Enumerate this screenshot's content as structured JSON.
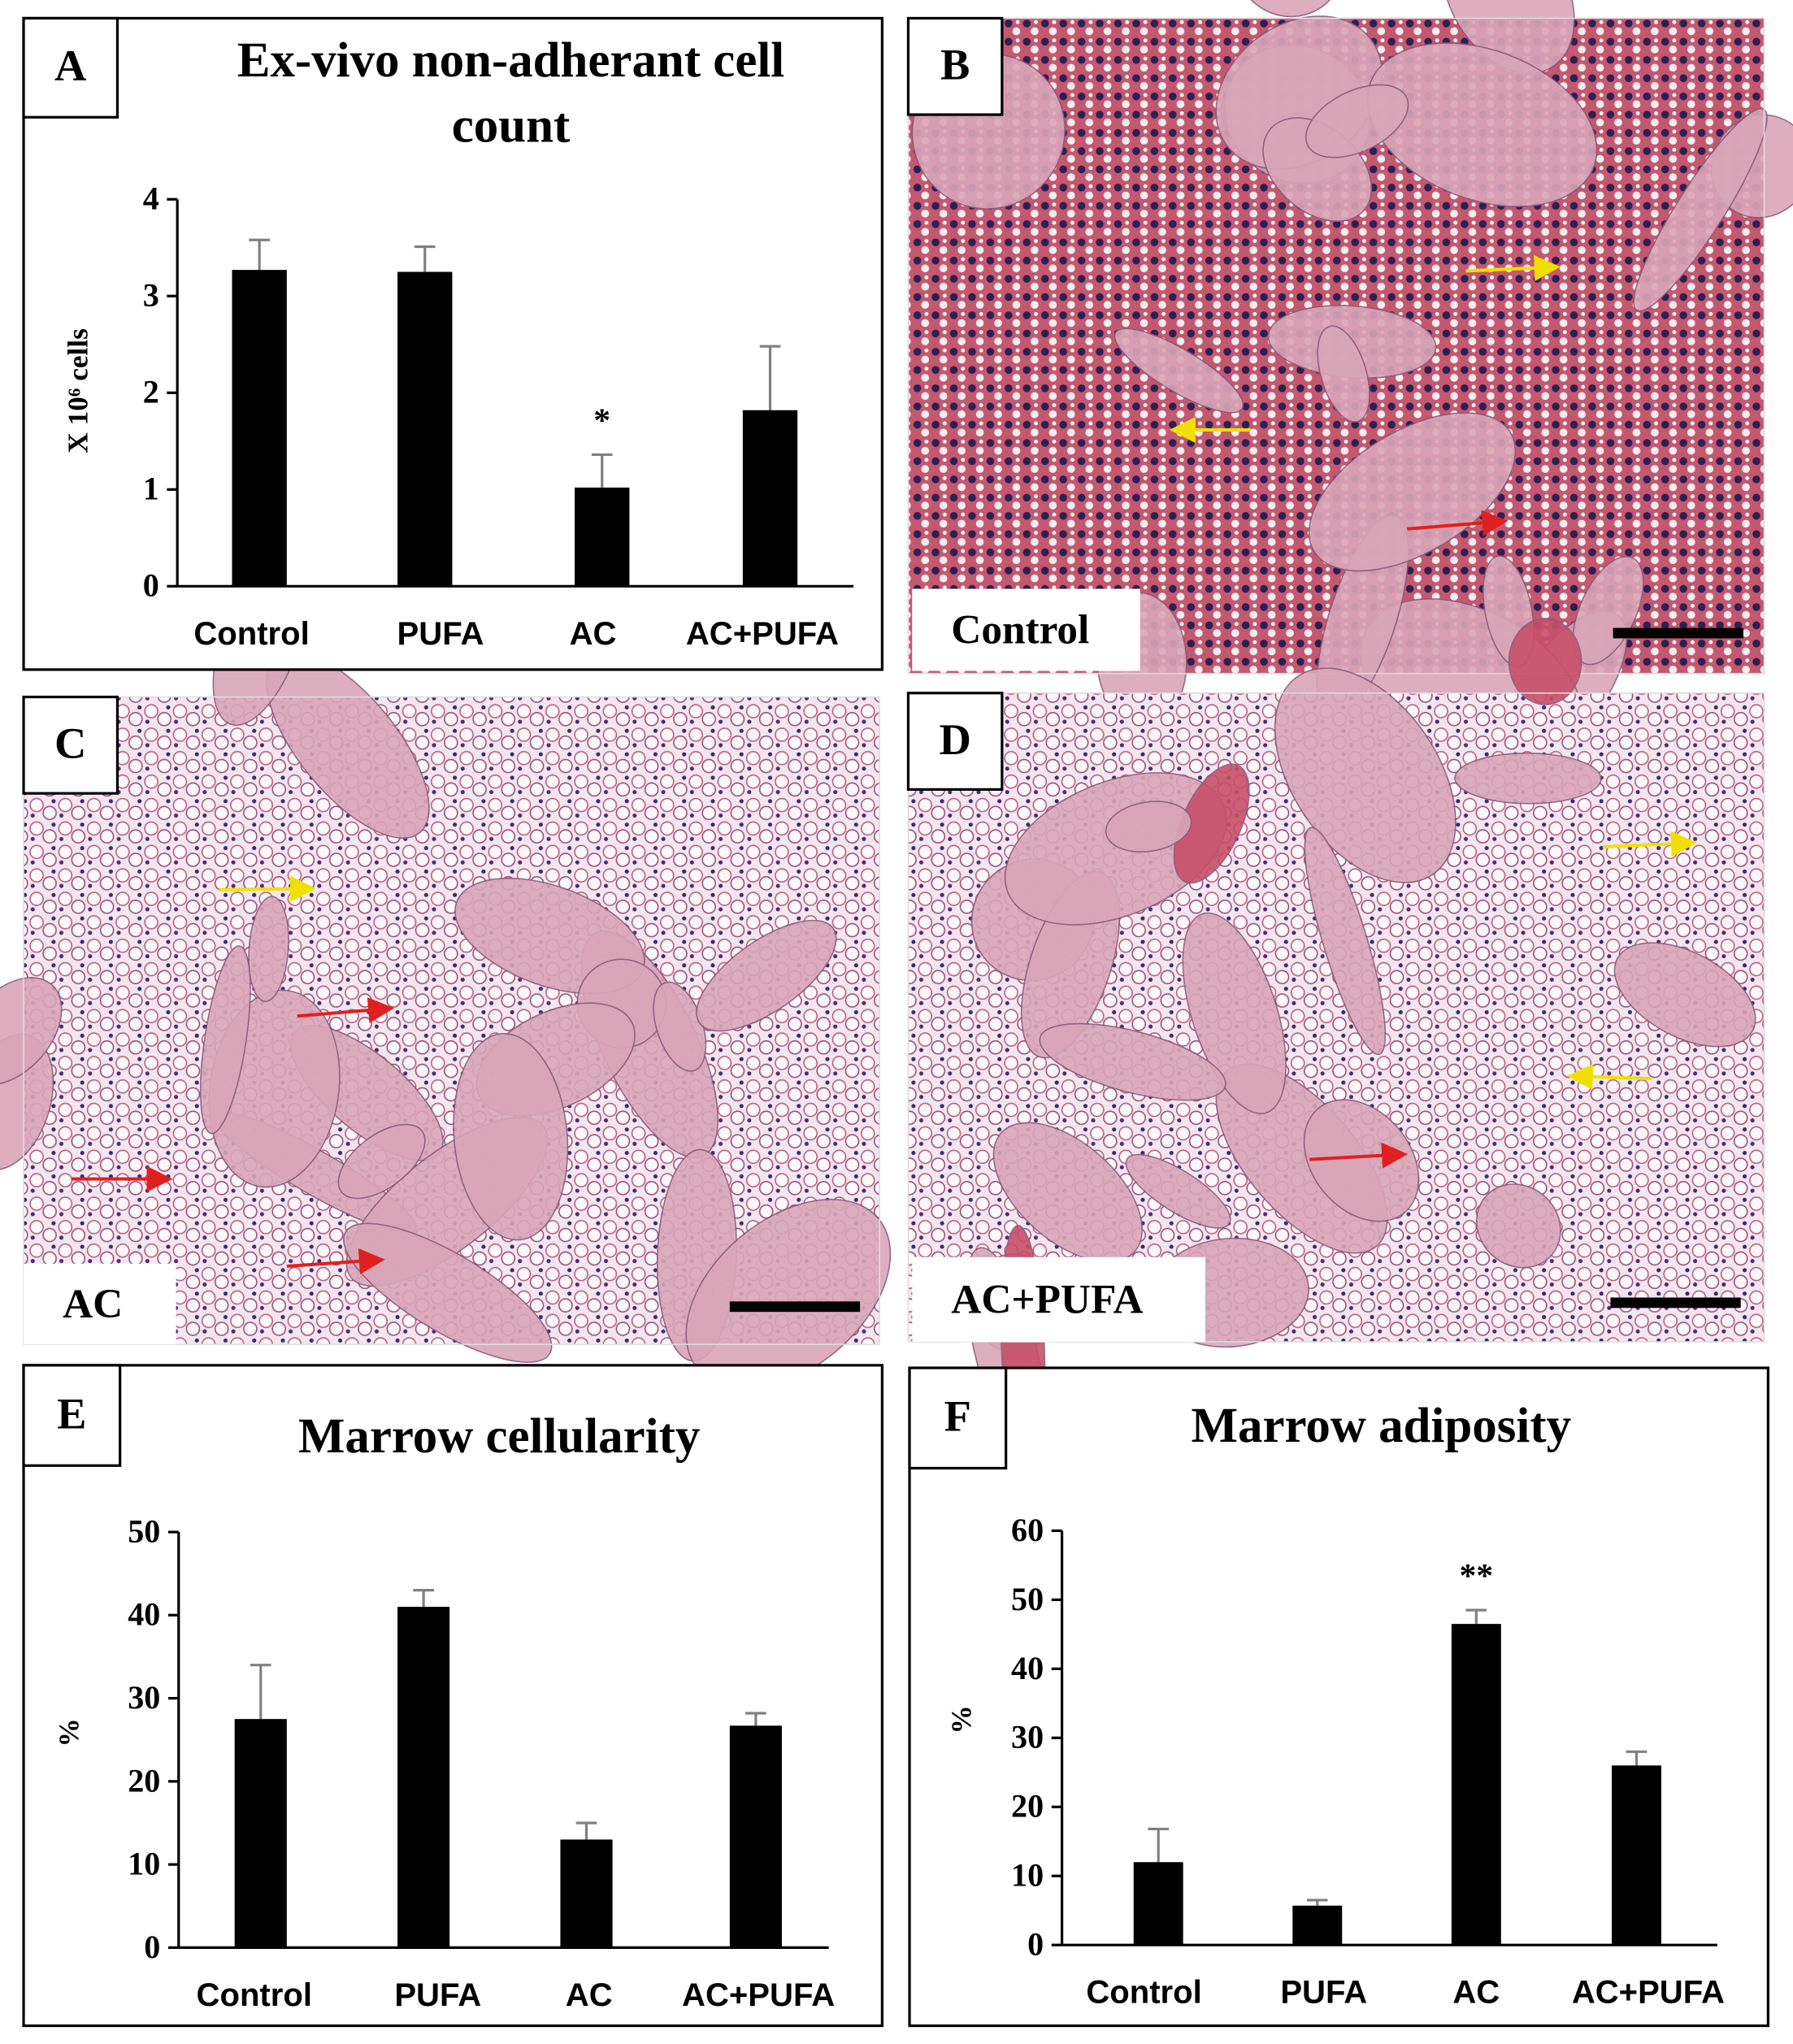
{
  "chart_data": [
    {
      "type": "bar",
      "panel": "A",
      "title": [
        "Ex-vivo non-adherant cell",
        "count"
      ],
      "y_label": "X 10⁶ cells",
      "categories": [
        "Control",
        "PUFA",
        "AC",
        "AC+PUFA"
      ],
      "values": [
        3.27,
        3.25,
        1.02,
        1.82
      ],
      "errors": [
        0.31,
        0.26,
        0.34,
        0.66
      ],
      "significance": [
        null,
        null,
        "*",
        null
      ],
      "color": "#000000",
      "error_color": "#808080",
      "ylim": [
        0,
        4
      ],
      "yticks": [
        0,
        1,
        2,
        3,
        4
      ]
    },
    {
      "type": "bar",
      "panel": "E",
      "title": [
        "Marrow cellularity"
      ],
      "y_label": "%",
      "categories": [
        "Control",
        "PUFA",
        "AC",
        "AC+PUFA"
      ],
      "values": [
        27.5,
        41,
        13,
        26.7
      ],
      "errors": [
        6.5,
        2,
        2,
        1.5
      ],
      "significance": [
        null,
        null,
        null,
        null
      ],
      "color": "#000000",
      "error_color": "#808080",
      "ylim": [
        0,
        50
      ],
      "yticks": [
        0,
        10,
        20,
        30,
        40,
        50
      ]
    },
    {
      "type": "bar",
      "panel": "F",
      "title": [
        "Marrow adiposity"
      ],
      "y_label": "%",
      "categories": [
        "Control",
        "PUFA",
        "AC",
        "AC+PUFA"
      ],
      "values": [
        12,
        5.7,
        46.5,
        26
      ],
      "errors": [
        4.8,
        0.8,
        2,
        2
      ],
      "significance": [
        null,
        null,
        "**",
        null
      ],
      "color": "#000000",
      "error_color": "#808080",
      "ylim": [
        0,
        60
      ],
      "yticks": [
        0,
        10,
        20,
        30,
        40,
        50,
        60
      ]
    }
  ],
  "images": [
    {
      "panel": "B",
      "label": "Control"
    },
    {
      "panel": "C",
      "label": "AC"
    },
    {
      "panel": "D",
      "label": "AC+PUFA"
    }
  ]
}
